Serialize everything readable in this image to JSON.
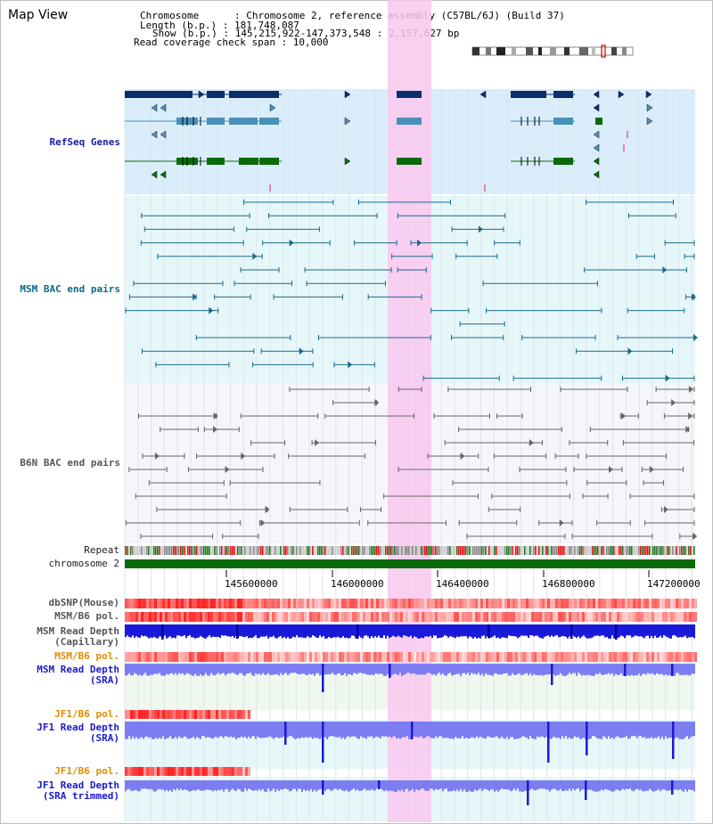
{
  "app": {
    "title": "Map View"
  },
  "info": {
    "line1": "Chromosome      : Chromosome 2, reference assembly (C57BL/6J) (Build 37)",
    "line2": "Length (b.p.) : 181,748,087",
    "line3": "Show (b.p.) : 145,215,922-147,373,548 : 2,157,627 bp",
    "line4": "Read coverage check span : 10,000"
  },
  "tracks": {
    "refseq": "RefSeq Genes",
    "msm_bac": "MSM BAC end pairs",
    "b6n_bac": "B6N BAC end pairs",
    "repeat": "Repeat",
    "chromosome": "chromosome 2",
    "dbsnp": "dbSNP(Mouse)",
    "msm_b6_pol": "MSM/B6 pol.",
    "msm_depth_cap_1": "MSM Read Depth",
    "msm_depth_cap_2": "(Capillary)",
    "msm_b6_pol2": "MSM/B6 pol.",
    "msm_depth_sra_1": "MSM Read Depth",
    "msm_depth_sra_2": "(SRA)",
    "jf1_b6_pol": "JF1/B6 pol.",
    "jf1_depth_sra_1": "JF1 Read Depth",
    "jf1_depth_sra_2": "(SRA)",
    "jf1_b6_pol2": "JF1/B6 pol.",
    "jf1_depth_trim_1": "JF1 Read Depth",
    "jf1_depth_trim_2": "(SRA trimmed)"
  },
  "axis": {
    "ticks": [
      "145600000",
      "146000000",
      "146400000",
      "146800000",
      "147200000"
    ]
  },
  "colors": {
    "refseq_dark": "#0b2e6b",
    "refseq_light": "#4a90b8",
    "refseq_green": "#0a6a0a",
    "msm_line": "#1a6a8a",
    "b6n_line": "#666666",
    "highlight": "#f9c8ef",
    "chrom_bar": "#0a6a0a"
  }
}
